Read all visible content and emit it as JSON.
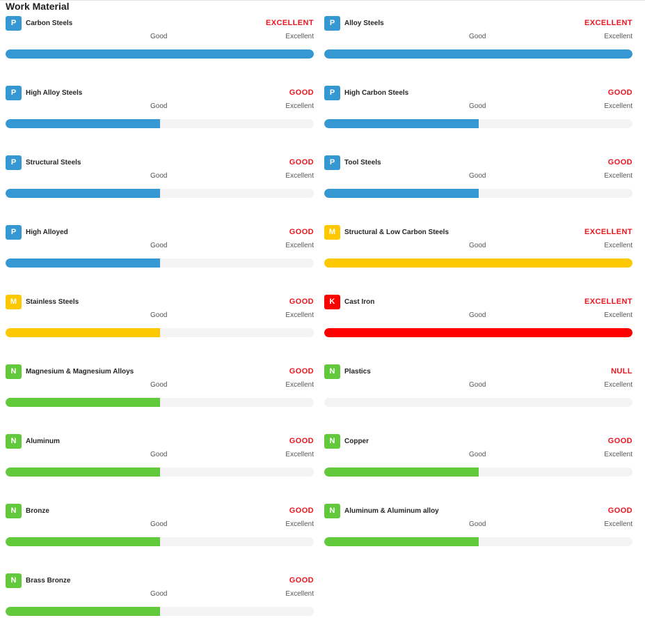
{
  "title": "Work Material",
  "scale": {
    "low": "Good",
    "high": "Excellent"
  },
  "colors": {
    "P": "#3598d2",
    "M": "#fdc800",
    "K": "#fc0000",
    "N": "#62c93d",
    "rating": "#e8161f"
  },
  "materials": [
    {
      "group": "P",
      "name": "Carbon Steels",
      "rating": "EXCELLENT",
      "level": 1.0
    },
    {
      "group": "P",
      "name": "Alloy Steels",
      "rating": "EXCELLENT",
      "level": 1.0
    },
    {
      "group": "P",
      "name": "High Alloy Steels",
      "rating": "GOOD",
      "level": 0.5
    },
    {
      "group": "P",
      "name": "High Carbon Steels",
      "rating": "GOOD",
      "level": 0.5
    },
    {
      "group": "P",
      "name": "Structural Steels",
      "rating": "GOOD",
      "level": 0.5
    },
    {
      "group": "P",
      "name": "Tool Steels",
      "rating": "GOOD",
      "level": 0.5
    },
    {
      "group": "P",
      "name": "High Alloyed",
      "rating": "GOOD",
      "level": 0.5
    },
    {
      "group": "M",
      "name": "Structural & Low Carbon Steels",
      "rating": "EXCELLENT",
      "level": 1.0
    },
    {
      "group": "M",
      "name": "Stainless Steels",
      "rating": "GOOD",
      "level": 0.5
    },
    {
      "group": "K",
      "name": "Cast Iron",
      "rating": "EXCELLENT",
      "level": 1.0
    },
    {
      "group": "N",
      "name": "Magnesium & Magnesium Alloys",
      "rating": "GOOD",
      "level": 0.5
    },
    {
      "group": "N",
      "name": "Plastics",
      "rating": "NULL",
      "level": 0
    },
    {
      "group": "N",
      "name": "Aluminum",
      "rating": "GOOD",
      "level": 0.5
    },
    {
      "group": "N",
      "name": "Copper",
      "rating": "GOOD",
      "level": 0.5
    },
    {
      "group": "N",
      "name": "Bronze",
      "rating": "GOOD",
      "level": 0.5
    },
    {
      "group": "N",
      "name": "Aluminum & Aluminum alloy",
      "rating": "GOOD",
      "level": 0.5
    },
    {
      "group": "N",
      "name": "Brass Bronze",
      "rating": "GOOD",
      "level": 0.5
    }
  ]
}
